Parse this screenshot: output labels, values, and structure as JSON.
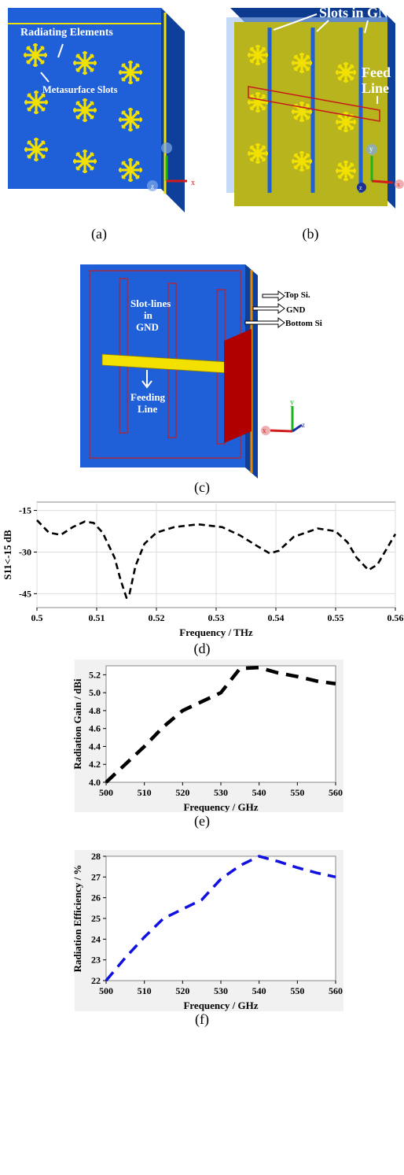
{
  "figure_a": {
    "label_radiating": "Radiating Elements",
    "label_slots": "Metasurface Slots",
    "caption": "(a)"
  },
  "figure_b": {
    "label_slots_gnd": "Slots in GND",
    "label_feed_1": "Feed",
    "label_feed_2": "Line",
    "caption": "(b)"
  },
  "figure_c": {
    "label_slotlines_1": "Slot-lines",
    "label_slotlines_2": "in",
    "label_slotlines_3": "GND",
    "label_feeding_1": "Feeding",
    "label_feeding_2": "Line",
    "label_top_si": "Top Si.",
    "label_gnd": "GND",
    "label_bottom_si": "Bottom Si.",
    "caption": "(c)"
  },
  "axes_triad": {
    "x": "x",
    "y": "y",
    "z": "z"
  },
  "colors": {
    "substrate_blue": "#1f5fd8",
    "element_yellow": "#f2e100",
    "gnd_olive": "#b8b41e",
    "feed_red": "#b00000",
    "curve_black": "#000000",
    "curve_blue": "#1010e0"
  },
  "chart_data": [
    {
      "id": "d",
      "type": "line",
      "caption": "(d)",
      "xlabel": "Frequency / THz",
      "ylabel": "S11<-15 dB",
      "xlim": [
        0.5,
        0.56
      ],
      "ylim": [
        -50,
        -12
      ],
      "x_ticks": [
        "0.5",
        "0.51",
        "0.52",
        "0.53",
        "0.54",
        "0.55",
        "0.56"
      ],
      "y_ticks": [
        "-15",
        "-30",
        "-45"
      ],
      "grid": true,
      "line_style": "dashed",
      "series": [
        {
          "x": [
            0.5,
            0.502,
            0.504,
            0.506,
            0.508,
            0.5095,
            0.511,
            0.513,
            0.514,
            0.515,
            0.5155,
            0.5165,
            0.518,
            0.52,
            0.523,
            0.527,
            0.531,
            0.534,
            0.537,
            0.539,
            0.5405,
            0.543,
            0.547,
            0.55,
            0.552,
            0.5535,
            0.5555,
            0.557,
            0.5585,
            0.56
          ],
          "y": [
            -18.5,
            -23.0,
            -23.8,
            -21.0,
            -19.0,
            -19.5,
            -23.0,
            -32.0,
            -40.0,
            -46.5,
            -45.0,
            -35.0,
            -27.0,
            -23.0,
            -21.0,
            -20.0,
            -21.0,
            -24.0,
            -28.0,
            -30.5,
            -29.5,
            -24.5,
            -21.5,
            -22.5,
            -26.5,
            -32.0,
            -36.5,
            -34.5,
            -29.0,
            -23.5
          ]
        }
      ]
    },
    {
      "id": "e",
      "type": "line",
      "caption": "(e)",
      "xlabel": "Frequency / GHz",
      "ylabel": "Radiation Gain / dBi",
      "xlim": [
        500,
        560
      ],
      "ylim": [
        4.0,
        5.3
      ],
      "x_ticks": [
        "500",
        "510",
        "520",
        "530",
        "540",
        "550",
        "560"
      ],
      "y_ticks": [
        "4.0",
        "4.2",
        "4.4",
        "4.6",
        "4.8",
        "5.0",
        "5.2"
      ],
      "grid": false,
      "line_style": "dashed",
      "series": [
        {
          "x": [
            500,
            505,
            510,
            515,
            520,
            525,
            530,
            535,
            540,
            545,
            550,
            555,
            560
          ],
          "y": [
            4.0,
            4.2,
            4.4,
            4.62,
            4.8,
            4.9,
            5.0,
            5.27,
            5.28,
            5.22,
            5.18,
            5.13,
            5.1
          ]
        }
      ]
    },
    {
      "id": "f",
      "type": "line",
      "caption": "(f)",
      "xlabel": "Frequency / GHz",
      "ylabel": "Radiation Efficiency / %",
      "xlim": [
        500,
        560
      ],
      "ylim": [
        22,
        28
      ],
      "x_ticks": [
        "500",
        "510",
        "520",
        "530",
        "540",
        "550",
        "560"
      ],
      "y_ticks": [
        "22",
        "23",
        "24",
        "25",
        "26",
        "27",
        "28"
      ],
      "grid": false,
      "line_style": "dashed",
      "series": [
        {
          "x": [
            500,
            505,
            510,
            515,
            520,
            525,
            530,
            535,
            540,
            545,
            550,
            555,
            560
          ],
          "y": [
            22.0,
            23.1,
            24.1,
            25.0,
            25.45,
            25.9,
            26.9,
            27.55,
            28.0,
            27.75,
            27.45,
            27.2,
            27.0
          ]
        }
      ]
    }
  ]
}
